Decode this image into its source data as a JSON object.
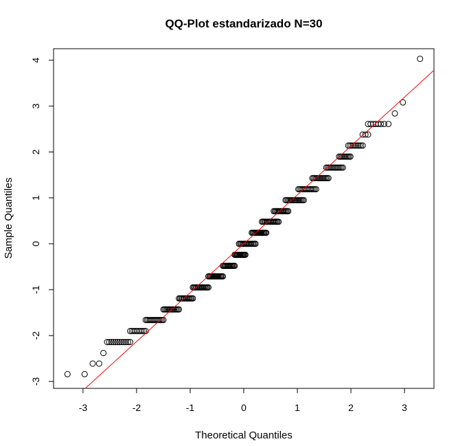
{
  "chart_data": {
    "type": "scatter",
    "title": "QQ-Plot estandarizado N=30",
    "xlabel": "Theoretical Quantiles",
    "ylabel": "Sample Quantiles",
    "xlim": [
      -3.55,
      3.55
    ],
    "ylim": [
      -3.15,
      4.25
    ],
    "x_ticks": [
      -3,
      -2,
      -1,
      0,
      1,
      2,
      3
    ],
    "y_ticks": [
      -3,
      -2,
      -1,
      0,
      1,
      2,
      3,
      4
    ],
    "reference_line": {
      "slope": 1.065,
      "intercept": 0.0,
      "color": "#ff0000"
    },
    "marker": "open-circle",
    "grid": false,
    "legend": "none",
    "points": [
      {
        "x": -3.29,
        "y": -2.84
      },
      {
        "x": -2.97,
        "y": -2.84
      },
      {
        "x": -2.82,
        "y": -2.61
      },
      {
        "x": -2.7,
        "y": -2.61
      },
      {
        "x": -2.62,
        "y": -2.38
      },
      {
        "x": 2.62,
        "y": 2.61
      },
      {
        "x": 2.7,
        "y": 2.61
      },
      {
        "x": 2.82,
        "y": 2.84
      },
      {
        "x": 2.97,
        "y": 3.08
      },
      {
        "x": 3.29,
        "y": 4.03
      }
    ],
    "plateaus": [
      {
        "y": -2.14,
        "x_from": -2.55,
        "x_to": -2.12,
        "n": 12
      },
      {
        "y": -1.9,
        "x_from": -2.12,
        "x_to": -1.83,
        "n": 10
      },
      {
        "y": -1.66,
        "x_from": -1.83,
        "x_to": -1.5,
        "n": 14
      },
      {
        "y": -1.43,
        "x_from": -1.5,
        "x_to": -1.21,
        "n": 14
      },
      {
        "y": -1.19,
        "x_from": -1.21,
        "x_to": -0.95,
        "n": 14
      },
      {
        "y": -0.95,
        "x_from": -0.95,
        "x_to": -0.66,
        "n": 16
      },
      {
        "y": -0.71,
        "x_from": -0.66,
        "x_to": -0.39,
        "n": 16
      },
      {
        "y": -0.48,
        "x_from": -0.39,
        "x_to": -0.17,
        "n": 14
      },
      {
        "y": -0.24,
        "x_from": -0.17,
        "x_to": 0.03,
        "n": 14
      },
      {
        "y": 0.0,
        "x_from": -0.09,
        "x_to": 0.22,
        "n": 16
      },
      {
        "y": 0.24,
        "x_from": 0.15,
        "x_to": 0.42,
        "n": 16
      },
      {
        "y": 0.48,
        "x_from": 0.34,
        "x_to": 0.65,
        "n": 16
      },
      {
        "y": 0.71,
        "x_from": 0.56,
        "x_to": 0.83,
        "n": 14
      },
      {
        "y": 0.95,
        "x_from": 0.78,
        "x_to": 1.12,
        "n": 16
      },
      {
        "y": 1.19,
        "x_from": 1.02,
        "x_to": 1.35,
        "n": 14
      },
      {
        "y": 1.43,
        "x_from": 1.28,
        "x_to": 1.58,
        "n": 14
      },
      {
        "y": 1.66,
        "x_from": 1.54,
        "x_to": 1.85,
        "n": 14
      },
      {
        "y": 1.9,
        "x_from": 1.78,
        "x_to": 1.99,
        "n": 10
      },
      {
        "y": 2.14,
        "x_from": 1.95,
        "x_to": 2.22,
        "n": 10
      },
      {
        "y": 2.38,
        "x_from": 2.22,
        "x_to": 2.32,
        "n": 3
      },
      {
        "y": 2.61,
        "x_from": 2.32,
        "x_to": 2.56,
        "n": 6
      }
    ]
  }
}
